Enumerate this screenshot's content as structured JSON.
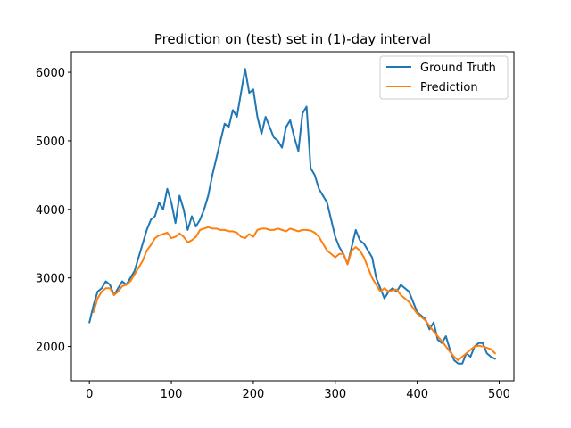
{
  "chart_data": {
    "type": "line",
    "title": "Prediction on (test) set in (1)-day interval",
    "xlabel": "",
    "ylabel": "",
    "xlim": [
      -22,
      518
    ],
    "ylim": [
      1500,
      6300
    ],
    "xticks": [
      0,
      100,
      200,
      300,
      400,
      500
    ],
    "yticks": [
      2000,
      3000,
      4000,
      5000,
      6000
    ],
    "grid": false,
    "legend_position": "top-right",
    "series": [
      {
        "name": "Ground Truth",
        "color": "#1f77b4",
        "x": [
          0,
          5,
          10,
          15,
          20,
          25,
          30,
          35,
          40,
          45,
          50,
          55,
          60,
          65,
          70,
          75,
          80,
          85,
          90,
          95,
          100,
          105,
          110,
          115,
          120,
          125,
          130,
          135,
          140,
          145,
          150,
          155,
          160,
          165,
          170,
          175,
          180,
          185,
          190,
          195,
          200,
          205,
          210,
          215,
          220,
          225,
          230,
          235,
          240,
          245,
          250,
          255,
          260,
          265,
          270,
          275,
          280,
          285,
          290,
          295,
          300,
          305,
          310,
          315,
          320,
          325,
          330,
          335,
          340,
          345,
          350,
          355,
          360,
          365,
          370,
          375,
          380,
          385,
          390,
          395,
          400,
          405,
          410,
          415,
          420,
          425,
          430,
          435,
          440,
          445,
          450,
          455,
          460,
          465,
          470,
          475,
          480,
          485,
          490,
          495
        ],
        "values": [
          2350,
          2600,
          2800,
          2850,
          2950,
          2900,
          2750,
          2850,
          2950,
          2900,
          3000,
          3100,
          3300,
          3500,
          3700,
          3850,
          3900,
          4100,
          4000,
          4300,
          4100,
          3800,
          4200,
          4000,
          3700,
          3900,
          3750,
          3850,
          4000,
          4200,
          4500,
          4750,
          5000,
          5250,
          5200,
          5450,
          5350,
          5700,
          6050,
          5700,
          5750,
          5350,
          5100,
          5350,
          5200,
          5050,
          5000,
          4900,
          5200,
          5300,
          5050,
          4850,
          5400,
          5500,
          4600,
          4500,
          4300,
          4200,
          4100,
          3850,
          3600,
          3450,
          3350,
          3200,
          3450,
          3700,
          3550,
          3500,
          3400,
          3300,
          3000,
          2850,
          2700,
          2800,
          2850,
          2800,
          2900,
          2850,
          2800,
          2650,
          2500,
          2450,
          2400,
          2250,
          2350,
          2100,
          2050,
          2150,
          1950,
          1800,
          1750,
          1750,
          1900,
          1850,
          2000,
          2050,
          2050,
          1900,
          1850,
          1820
        ]
      },
      {
        "name": "Prediction",
        "color": "#ff7f0e",
        "x": [
          5,
          10,
          15,
          20,
          25,
          30,
          35,
          40,
          45,
          50,
          55,
          60,
          65,
          70,
          75,
          80,
          85,
          90,
          95,
          100,
          105,
          110,
          115,
          120,
          125,
          130,
          135,
          140,
          145,
          150,
          155,
          160,
          165,
          170,
          175,
          180,
          185,
          190,
          195,
          200,
          205,
          210,
          215,
          220,
          225,
          230,
          235,
          240,
          245,
          250,
          255,
          260,
          265,
          270,
          275,
          280,
          285,
          290,
          295,
          300,
          305,
          310,
          315,
          320,
          325,
          330,
          335,
          340,
          345,
          350,
          355,
          360,
          365,
          370,
          375,
          380,
          385,
          390,
          395,
          400,
          405,
          410,
          415,
          420,
          425,
          430,
          435,
          440,
          445,
          450,
          455,
          460,
          465,
          470,
          475,
          480,
          485,
          490,
          495
        ],
        "values": [
          2500,
          2700,
          2800,
          2850,
          2850,
          2750,
          2800,
          2880,
          2900,
          2950,
          3050,
          3150,
          3250,
          3400,
          3480,
          3580,
          3620,
          3640,
          3660,
          3580,
          3600,
          3650,
          3600,
          3520,
          3550,
          3600,
          3700,
          3720,
          3740,
          3720,
          3720,
          3700,
          3700,
          3680,
          3680,
          3660,
          3600,
          3580,
          3640,
          3600,
          3700,
          3720,
          3720,
          3700,
          3700,
          3720,
          3700,
          3680,
          3720,
          3700,
          3680,
          3700,
          3700,
          3690,
          3660,
          3600,
          3500,
          3400,
          3350,
          3300,
          3350,
          3350,
          3200,
          3400,
          3450,
          3400,
          3300,
          3150,
          3000,
          2900,
          2800,
          2850,
          2800,
          2820,
          2830,
          2750,
          2700,
          2650,
          2560,
          2480,
          2430,
          2380,
          2300,
          2220,
          2150,
          2080,
          2000,
          1920,
          1850,
          1800,
          1850,
          1900,
          1950,
          2000,
          2010,
          2000,
          1980,
          1960,
          1900
        ]
      }
    ]
  }
}
